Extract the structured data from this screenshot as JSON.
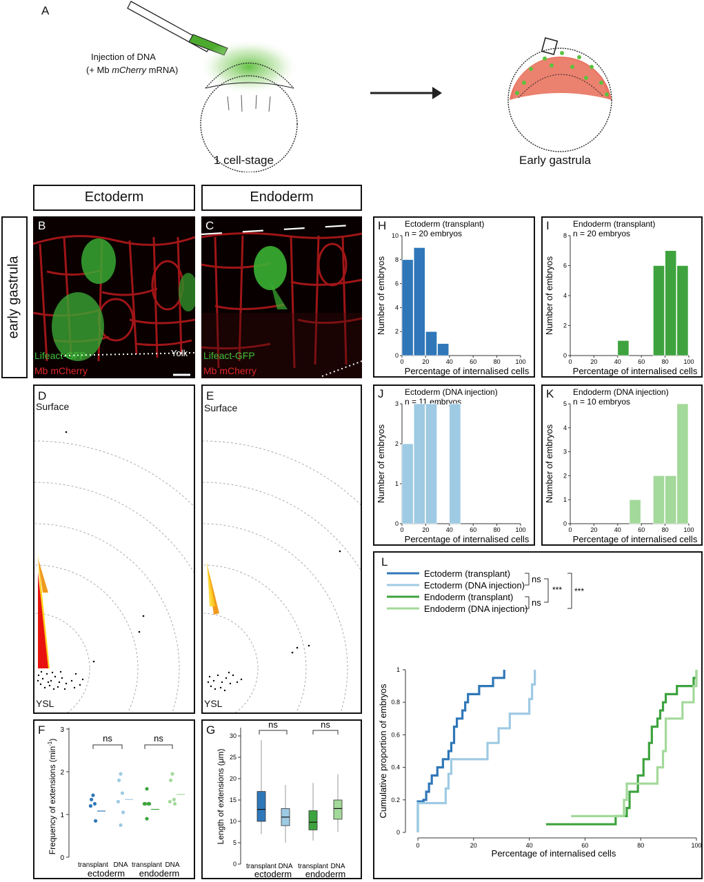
{
  "panelA": {
    "letter": "A",
    "injection_line1": "Injection of DNA",
    "injection_line2a": "(+ Mb ",
    "injection_line2b": "mCherry",
    "injection_line2c": " mRNA)",
    "stage1": "1 cell-stage",
    "stage2": "Early gastrula"
  },
  "headers": {
    "ectoderm": "Ectoderm",
    "endoderm": "Endoderm",
    "side": "early gastrula"
  },
  "panelB": {
    "letter": "B",
    "lifeact": "Lifeact-GFP",
    "mb": "Mb mCherry",
    "yolk": "Yolk"
  },
  "panelC": {
    "letter": "C",
    "lifeact": "Lifeact-GFP",
    "mb": "Mb mCherry"
  },
  "panelD": {
    "letter": "D",
    "top": "Surface",
    "bottom": "YSL"
  },
  "panelE": {
    "letter": "E",
    "top": "Surface",
    "bottom": "YSL"
  },
  "panelF": {
    "letter": "F",
    "ylabel": "Frequency of extensions (min",
    "ylabel_sup": "-1",
    "ylabel_end": ")",
    "ns1": "ns",
    "ns2": "ns",
    "xt1": "transplant",
    "xt2": "DNA",
    "xt3": "transplant",
    "xt4": "DNA",
    "group1": "ectoderm",
    "group2": "endoderm",
    "yticks": [
      "0",
      "1",
      "2",
      "3"
    ]
  },
  "panelG": {
    "letter": "G",
    "ylabel": "Length of extensions (μm)",
    "ns1": "ns",
    "ns2": "ns",
    "xt1": "transplant",
    "xt2": "DNA",
    "xt3": "transplant",
    "xt4": "DNA",
    "group1": "ectoderm",
    "group2": "endoderm",
    "yticks": [
      "0",
      "5",
      "10",
      "15",
      "20",
      "25",
      "30"
    ]
  },
  "panelL": {
    "letter": "L",
    "leg1": "Ectoderm (transplant)",
    "leg2": "Ectoderm (DNA injection)",
    "leg3": "Endoderm (transplant)",
    "leg4": "Endoderm (DNA injection)",
    "ns1": "ns",
    "ns2": "ns",
    "sig1": "***",
    "sig2": "***"
  },
  "colors": {
    "ecto_transplant": "#2f77b8",
    "ecto_dna": "#9ecae3",
    "endo_transplant": "#3ea33e",
    "endo_dna": "#a3d99a"
  },
  "chart_data": [
    {
      "id": "H",
      "type": "bar",
      "title": "Ectoderm (transplant)",
      "subtitle": "n = 20 embryos",
      "xlabel": "Percentage of internalised cells",
      "ylabel": "Number of embryos",
      "bin_starts": [
        0,
        10,
        20,
        30
      ],
      "bin_width": 10,
      "values": [
        8,
        9,
        2,
        1
      ],
      "xlim": [
        0,
        100
      ],
      "ylim": [
        0,
        10
      ],
      "xticks": [
        0,
        20,
        40,
        60,
        80,
        100
      ],
      "yticks": [
        0,
        2,
        4,
        6,
        8,
        10
      ],
      "color": "#2f77b8"
    },
    {
      "id": "I",
      "type": "bar",
      "title": "Endoderm (transplant)",
      "subtitle": "n = 20 embryos",
      "xlabel": "Percentage of internalised cells",
      "ylabel": "Number of embryos",
      "bin_starts": [
        40,
        70,
        80,
        90
      ],
      "bin_width": 10,
      "values": [
        1,
        6,
        7,
        6
      ],
      "xlim": [
        0,
        100
      ],
      "ylim": [
        0,
        8
      ],
      "xticks": [
        0,
        20,
        40,
        60,
        80,
        100
      ],
      "yticks": [
        0,
        2,
        4,
        6,
        8
      ],
      "color": "#3ea33e"
    },
    {
      "id": "J",
      "type": "bar",
      "title": "Ectoderm (DNA injection)",
      "subtitle": "n = 11 embryos",
      "xlabel": "Percentage of internalised cells",
      "ylabel": "Number of embryos",
      "bin_starts": [
        0,
        10,
        20,
        40
      ],
      "bin_width": 10,
      "values": [
        2,
        3,
        3,
        3
      ],
      "xlim": [
        0,
        100
      ],
      "ylim": [
        0,
        3
      ],
      "xticks": [
        0,
        20,
        40,
        60,
        80,
        100
      ],
      "yticks": [
        0,
        1,
        2,
        3
      ],
      "color": "#9ecae3"
    },
    {
      "id": "K",
      "type": "bar",
      "title": "Endoderm (DNA injection)",
      "subtitle": "n = 10 embryos",
      "xlabel": "Percentage of internalised cells",
      "ylabel": "Number of embryos",
      "bin_starts": [
        50,
        70,
        80,
        90
      ],
      "bin_width": 10,
      "values": [
        1,
        2,
        2,
        5
      ],
      "xlim": [
        0,
        100
      ],
      "ylim": [
        0,
        5
      ],
      "xticks": [
        0,
        20,
        40,
        60,
        80,
        100
      ],
      "yticks": [
        0,
        1,
        2,
        3,
        4,
        5
      ],
      "color": "#a3d99a"
    },
    {
      "id": "F",
      "type": "scatter",
      "ylabel": "Frequency of extensions (min-1)",
      "ylim": [
        0,
        3
      ],
      "yticks": [
        0,
        1,
        2,
        3
      ],
      "groups": [
        {
          "name": "transplant ectoderm",
          "points": [
            1.45,
            1.35,
            1.25,
            1.2,
            0.85
          ],
          "mean": 1.08,
          "color": "#2f77b8"
        },
        {
          "name": "DNA ectoderm",
          "points": [
            1.95,
            1.8,
            1.5,
            1.3,
            1.05,
            0.75
          ],
          "mean": 1.35,
          "color": "#9ecae3"
        },
        {
          "name": "transplant endoderm",
          "points": [
            1.6,
            1.25,
            1.25,
            1.25,
            1.25,
            0.9
          ],
          "mean": 1.12,
          "color": "#3ea33e"
        },
        {
          "name": "DNA endoderm",
          "points": [
            1.95,
            1.8,
            1.35,
            1.3,
            1.25
          ],
          "mean": 1.47,
          "color": "#a3d99a"
        }
      ]
    },
    {
      "id": "G",
      "type": "box",
      "ylabel": "Length of extensions (μm)",
      "ylim": [
        0,
        30
      ],
      "yticks": [
        0,
        5,
        10,
        15,
        20,
        25,
        30
      ],
      "groups": [
        {
          "name": "transplant ectoderm",
          "whisker_low": 7,
          "q1": 10,
          "median": 12.8,
          "q3": 17,
          "whisker_high": 29,
          "color": "#2f77b8"
        },
        {
          "name": "DNA ectoderm",
          "whisker_low": 5,
          "q1": 9,
          "median": 11,
          "q3": 13,
          "whisker_high": 18.5,
          "color": "#9ecae3"
        },
        {
          "name": "transplant endoderm",
          "whisker_low": 5.5,
          "q1": 8,
          "median": 9.8,
          "q3": 12.5,
          "whisker_high": 19,
          "color": "#3ea33e"
        },
        {
          "name": "DNA endoderm",
          "whisker_low": 7.5,
          "q1": 10.5,
          "median": 13,
          "q3": 15,
          "whisker_high": 21,
          "color": "#a3d99a"
        }
      ]
    },
    {
      "id": "L",
      "type": "line",
      "xlabel": "Percentage of internalised cells",
      "ylabel": "Cumulative proportion of embryos",
      "xlim": [
        0,
        100
      ],
      "ylim": [
        0,
        1
      ],
      "xticks": [
        0,
        20,
        40,
        60,
        80,
        100
      ],
      "yticks": [
        0,
        0.2,
        0.4,
        0.6,
        0.8,
        1
      ],
      "series": [
        {
          "name": "Ectoderm (transplant)",
          "color": "#2f77b8",
          "points": [
            [
              0,
              0
            ],
            [
              0,
              0.19
            ],
            [
              2,
              0.2
            ],
            [
              3,
              0.25
            ],
            [
              4,
              0.3
            ],
            [
              5,
              0.35
            ],
            [
              7,
              0.4
            ],
            [
              9,
              0.45
            ],
            [
              11,
              0.5
            ],
            [
              12,
              0.55
            ],
            [
              13,
              0.65
            ],
            [
              14,
              0.7
            ],
            [
              16,
              0.75
            ],
            [
              17,
              0.8
            ],
            [
              18,
              0.85
            ],
            [
              22,
              0.9
            ],
            [
              27,
              0.95
            ],
            [
              31,
              1
            ]
          ]
        },
        {
          "name": "Ectoderm (DNA injection)",
          "color": "#9ecae3",
          "points": [
            [
              0,
              0
            ],
            [
              0,
              0.18
            ],
            [
              10,
              0.27
            ],
            [
              11,
              0.36
            ],
            [
              12,
              0.45
            ],
            [
              25,
              0.55
            ],
            [
              29,
              0.64
            ],
            [
              33,
              0.73
            ],
            [
              40,
              0.82
            ],
            [
              41,
              0.91
            ],
            [
              42,
              1
            ]
          ]
        },
        {
          "name": "Endoderm (transplant)",
          "color": "#3ea33e",
          "points": [
            [
              46,
              0.05
            ],
            [
              71,
              0.1
            ],
            [
              75,
              0.15
            ],
            [
              76,
              0.25
            ],
            [
              79,
              0.35
            ],
            [
              81,
              0.45
            ],
            [
              83,
              0.55
            ],
            [
              84,
              0.65
            ],
            [
              86,
              0.7
            ],
            [
              87,
              0.75
            ],
            [
              88,
              0.8
            ],
            [
              89,
              0.85
            ],
            [
              93,
              0.9
            ],
            [
              99,
              0.95
            ],
            [
              100,
              1
            ]
          ]
        },
        {
          "name": "Endoderm (DNA injection)",
          "color": "#a3d99a",
          "points": [
            [
              55,
              0.1
            ],
            [
              74,
              0.2
            ],
            [
              75,
              0.3
            ],
            [
              86,
              0.4
            ],
            [
              88,
              0.5
            ],
            [
              89,
              0.7
            ],
            [
              95,
              0.8
            ],
            [
              99,
              0.9
            ],
            [
              100,
              1
            ]
          ]
        }
      ]
    }
  ]
}
